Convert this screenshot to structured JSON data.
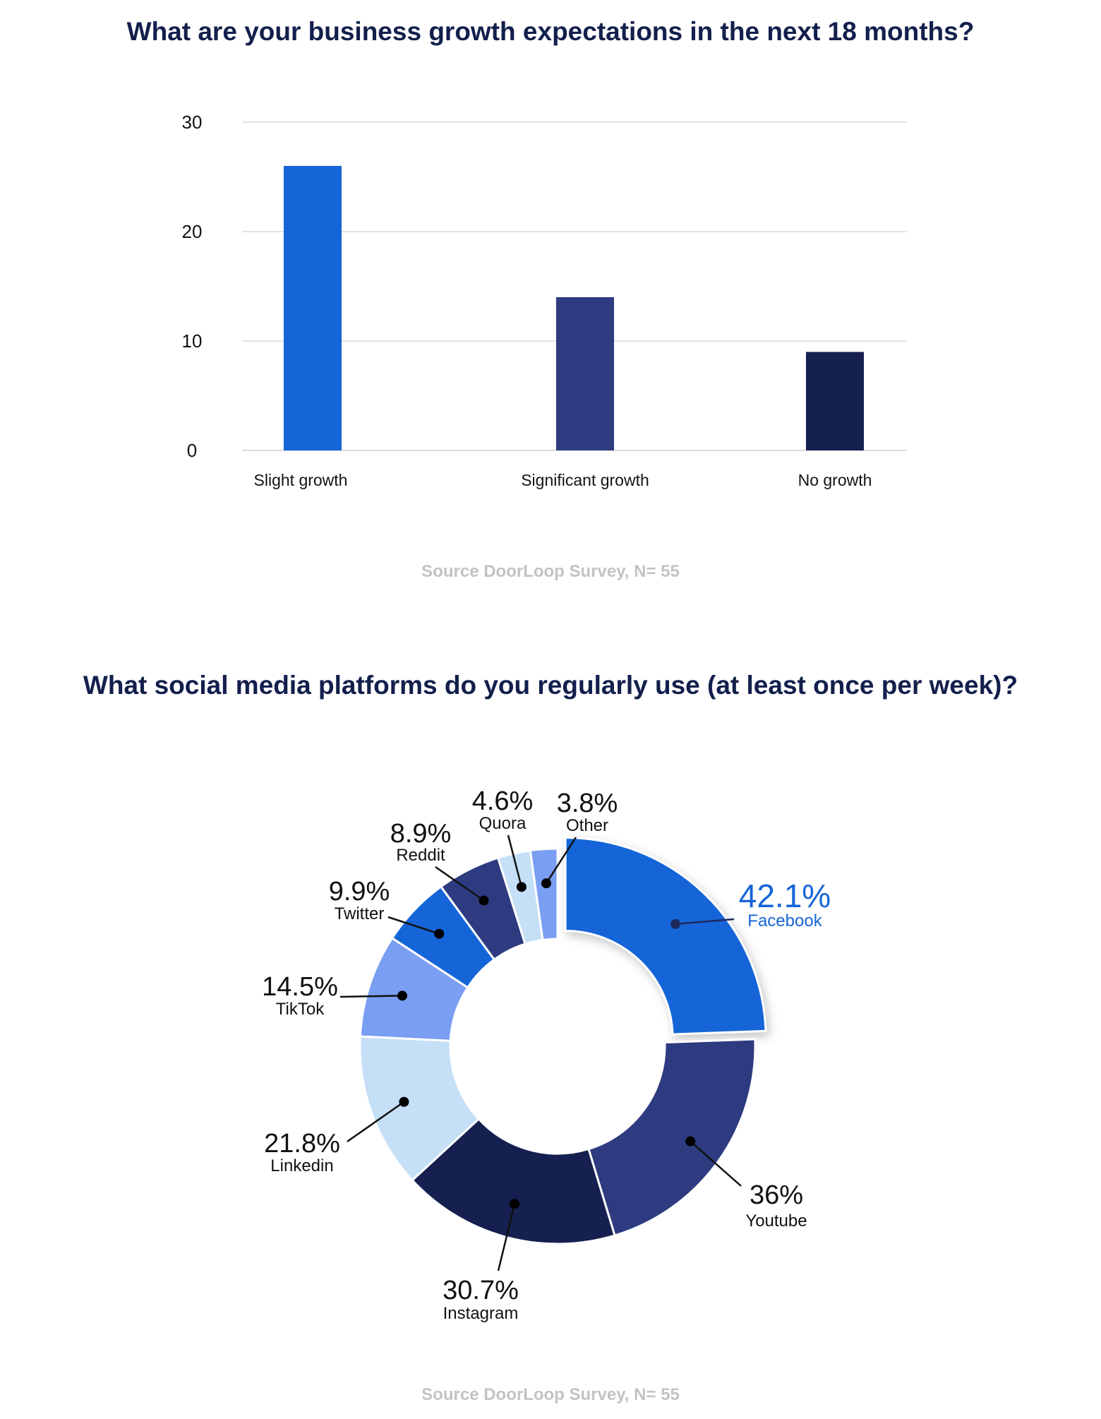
{
  "charts": [
    {
      "title": "What are your business growth expectations in the next 18 months?",
      "source": "Source DoorLoop Survey, N= 55"
    },
    {
      "title": "What social media platforms do you regularly use (at least once per week)?",
      "source": "Source DoorLoop Survey, N= 55"
    }
  ],
  "chart_data": [
    {
      "type": "bar",
      "title": "What are your business growth expectations in the next 18 months?",
      "categories": [
        "Slight growth",
        "Significant growth",
        "No growth"
      ],
      "values": [
        26,
        14,
        9
      ],
      "colors": [
        "#1565d8",
        "#2e3b80",
        "#162050"
      ],
      "yticks": [
        "0",
        "10",
        "20",
        "30"
      ],
      "ylim": [
        0,
        30
      ],
      "grid": true,
      "xlabel": "",
      "ylabel": ""
    },
    {
      "type": "pie",
      "title": "What social media platforms do you regularly use (at least once per week)?",
      "donut": true,
      "slices": [
        {
          "label": "Facebook",
          "value_label": "42.1%",
          "value": 42.1,
          "color": "#1565d8",
          "highlight": true
        },
        {
          "label": "Youtube",
          "value_label": "36%",
          "value": 36,
          "color": "#2e3b80"
        },
        {
          "label": "Instagram",
          "value_label": "30.7%",
          "value": 30.7,
          "color": "#162050"
        },
        {
          "label": "Linkedin",
          "value_label": "21.8%",
          "value": 21.8,
          "color": "#c5dff7"
        },
        {
          "label": "TikTok",
          "value_label": "14.5%",
          "value": 14.5,
          "color": "#7a9ef2"
        },
        {
          "label": "Twitter",
          "value_label": "9.9%",
          "value": 9.9,
          "color": "#1565d8"
        },
        {
          "label": "Reddit",
          "value_label": "8.9%",
          "value": 8.9,
          "color": "#2e3b80"
        },
        {
          "label": "Quora",
          "value_label": "4.6%",
          "value": 4.6,
          "color": "#c5dff7"
        },
        {
          "label": "Other",
          "value_label": "3.8%",
          "value": 3.8,
          "color": "#7a9ef2"
        }
      ]
    }
  ]
}
